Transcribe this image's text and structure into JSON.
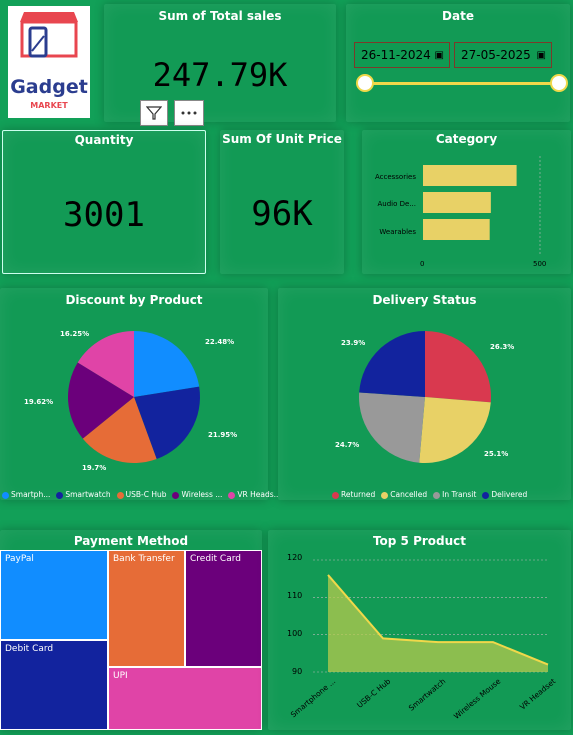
{
  "logo": {
    "line1": "Gadget",
    "line2": "MARKET"
  },
  "total_sales": {
    "title": "Sum of Total sales",
    "value": "247.79K"
  },
  "date": {
    "title": "Date",
    "start": "26-11-2024",
    "end": "27-05-2025"
  },
  "quantity": {
    "title": "Quantity",
    "value": "3001"
  },
  "unit_price": {
    "title": "Sum Of Unit Price",
    "value": "96K"
  },
  "category": {
    "title": "Category",
    "ticks": [
      "0",
      "500"
    ]
  },
  "discount": {
    "title": "Discount by Product"
  },
  "delivery": {
    "title": "Delivery Status"
  },
  "payment": {
    "title": "Payment Method",
    "items": [
      "PayPal",
      "Bank Transfer",
      "Credit Card",
      "Debit Card",
      "UPI"
    ]
  },
  "top5": {
    "title": "Top 5 Product",
    "yticks": [
      "120",
      "110",
      "100",
      "90"
    ]
  },
  "colors": {
    "background": "#12a058",
    "blue": "#118dff",
    "navy": "#12239e",
    "orange": "#e66c37",
    "purple": "#6b007b",
    "pink": "#e044a7",
    "red": "#d9394f",
    "yellow": "#e8d166",
    "gray": "#999999"
  },
  "chart_data": [
    {
      "type": "bar",
      "title": "Category",
      "categories": [
        "Accessories",
        "Audio De...",
        "Wearables"
      ],
      "values": [
        400,
        290,
        285
      ],
      "xlim": [
        0,
        500
      ]
    },
    {
      "type": "pie",
      "title": "Discount by Product",
      "labels": [
        "Smartph...",
        "Smartwatch",
        "USB-C Hub",
        "Wireless ...",
        "VR Heads..."
      ],
      "values": [
        22.48,
        21.95,
        19.7,
        19.62,
        16.25
      ],
      "value_labels": [
        "22.48%",
        "21.95%",
        "19.7%",
        "19.62%",
        "16.25%"
      ],
      "colors": [
        "#118dff",
        "#12239e",
        "#e66c37",
        "#6b007b",
        "#e044a7"
      ]
    },
    {
      "type": "pie",
      "title": "Delivery Status",
      "labels": [
        "Returned",
        "Cancelled",
        "In Transit",
        "Delivered"
      ],
      "values": [
        26.3,
        25.1,
        24.7,
        23.9
      ],
      "value_labels": [
        "26.3%",
        "25.1%",
        "24.7%",
        "23.9%"
      ],
      "colors": [
        "#d9394f",
        "#e8d166",
        "#999999",
        "#12239e"
      ]
    },
    {
      "type": "area",
      "title": "Top 5 Product",
      "categories": [
        "Smartphone ...",
        "USB-C Hub",
        "Smartwatch",
        "Wireless Mouse",
        "VR Headset"
      ],
      "values": [
        116,
        99,
        98,
        98,
        92
      ],
      "ylim": [
        90,
        120
      ]
    }
  ]
}
